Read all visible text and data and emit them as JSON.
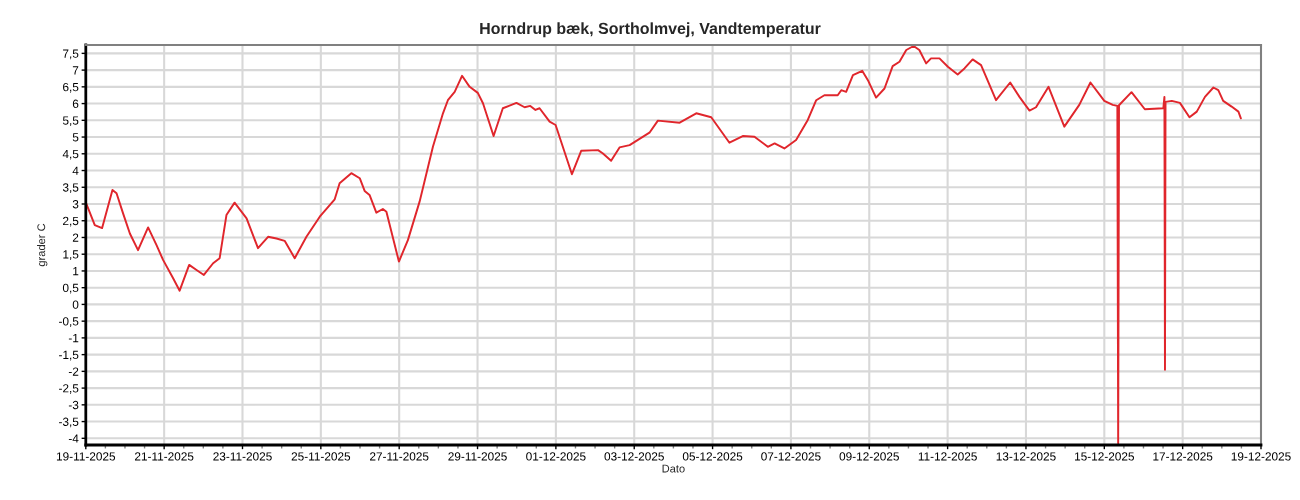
{
  "chart_data": {
    "type": "line",
    "title": "Horndrup bæk, Sortholmvej, Vandtemperatur",
    "xlabel": "Dato",
    "ylabel": "grader C",
    "color": "#e0262c",
    "grid": true,
    "x": [
      "2025-11-19T00:00",
      "2025-11-19T05:30",
      "2025-11-19T10:00",
      "2025-11-19T16:20",
      "2025-11-19T18:50",
      "2025-11-19T22:50",
      "2025-11-20T03:00",
      "2025-11-20T08:00",
      "2025-11-20T14:10",
      "2025-11-20T19:20",
      "2025-11-20T23:20",
      "2025-11-21T05:30",
      "2025-11-21T09:30",
      "2025-11-21T15:20",
      "2025-11-21T19:50",
      "2025-11-22T00:20",
      "2025-11-22T06:00",
      "2025-11-22T10:00",
      "2025-11-22T14:10",
      "2025-11-22T19:10",
      "2025-11-23T02:30",
      "2025-11-23T09:30",
      "2025-11-23T15:40",
      "2025-11-23T20:50",
      "2025-11-24T01:50",
      "2025-11-24T08:00",
      "2025-11-24T15:10",
      "2025-11-24T23:20",
      "2025-11-25T08:30",
      "2025-11-25T11:30",
      "2025-11-25T18:40",
      "2025-11-25T23:50",
      "2025-11-26T02:50",
      "2025-11-26T05:50",
      "2025-11-26T10:00",
      "2025-11-26T14:00",
      "2025-11-26T16:10",
      "2025-11-26T23:50",
      "2025-11-27T05:20",
      "2025-11-27T12:30",
      "2025-11-27T20:40",
      "2025-11-28T02:50",
      "2025-11-28T05:50",
      "2025-11-28T10:00",
      "2025-11-28T14:30",
      "2025-11-28T19:10",
      "2025-11-29T00:10",
      "2025-11-29T03:20",
      "2025-11-29T09:50",
      "2025-11-29T15:30",
      "2025-11-29T23:50",
      "2025-11-30T04:50",
      "2025-11-30T08:20",
      "2025-11-30T11:30",
      "2025-11-30T14:00",
      "2025-11-30T20:10",
      "2025-11-30T23:50",
      "2025-12-01T09:50",
      "2025-12-01T15:30",
      "2025-12-02T01:50",
      "2025-12-02T04:50",
      "2025-12-02T09:50",
      "2025-12-02T15:00",
      "2025-12-02T21:10",
      "2025-12-03T09:20",
      "2025-12-03T14:30",
      "2025-12-04T03:50",
      "2025-12-04T14:00",
      "2025-12-04T23:10",
      "2025-12-05T10:20",
      "2025-12-05T18:30",
      "2025-12-06T01:40",
      "2025-12-06T09:50",
      "2025-12-06T14:00",
      "2025-12-06T20:00",
      "2025-12-07T03:10",
      "2025-12-07T10:20",
      "2025-12-07T15:30",
      "2025-12-07T20:30",
      "2025-12-08T04:40",
      "2025-12-08T06:50",
      "2025-12-08T09:50",
      "2025-12-08T14:00",
      "2025-12-08T19:40",
      "2025-12-08T23:10",
      "2025-12-09T04:10",
      "2025-12-09T09:20",
      "2025-12-09T14:20",
      "2025-12-09T18:30",
      "2025-12-09T22:40",
      "2025-12-10T03:10",
      "2025-12-10T06:40",
      "2025-12-10T10:50",
      "2025-12-10T13:50",
      "2025-12-10T19:00",
      "2025-12-11T00:10",
      "2025-12-11T06:10",
      "2025-12-11T10:20",
      "2025-12-11T15:20",
      "2025-12-11T20:30",
      "2025-12-12T05:40",
      "2025-12-12T14:20",
      "2025-12-12T20:00",
      "2025-12-13T02:10",
      "2025-12-13T06:10",
      "2025-12-13T13:50",
      "2025-12-13T23:30",
      "2025-12-14T08:40",
      "2025-12-14T15:30",
      "2025-12-15T00:00",
      "2025-12-15T05:10",
      "2025-12-15T08:00",
      "2025-12-15T08:30",
      "2025-12-15T09:00",
      "2025-12-15T16:40",
      "2025-12-16T00:50",
      "2025-12-16T12:10",
      "2025-12-16T12:50",
      "2025-12-16T13:10",
      "2025-12-16T13:30",
      "2025-12-16T17:20",
      "2025-12-16T22:20",
      "2025-12-17T04:10",
      "2025-12-17T08:40",
      "2025-12-17T13:40",
      "2025-12-17T18:50",
      "2025-12-17T21:50",
      "2025-12-18T00:50",
      "2025-12-18T06:00",
      "2025-12-18T10:10",
      "2025-12-18T11:40"
    ],
    "values": [
      3.05,
      2.37,
      2.28,
      3.42,
      3.32,
      2.72,
      2.12,
      1.62,
      2.3,
      1.77,
      1.33,
      0.78,
      0.41,
      1.18,
      1.03,
      0.88,
      1.23,
      1.38,
      2.67,
      3.04,
      2.57,
      1.68,
      2.02,
      1.97,
      1.9,
      1.38,
      2.02,
      2.62,
      3.14,
      3.62,
      3.92,
      3.77,
      3.39,
      3.27,
      2.74,
      2.85,
      2.77,
      1.28,
      1.92,
      3.07,
      4.71,
      5.71,
      6.1,
      6.35,
      6.83,
      6.5,
      6.32,
      6.01,
      5.03,
      5.86,
      6.02,
      5.89,
      5.93,
      5.81,
      5.86,
      5.46,
      5.36,
      3.89,
      4.59,
      4.61,
      4.51,
      4.29,
      4.69,
      4.76,
      5.13,
      5.49,
      5.43,
      5.71,
      5.59,
      4.83,
      5.03,
      5.01,
      4.71,
      4.81,
      4.66,
      4.91,
      5.51,
      6.1,
      6.25,
      6.25,
      6.4,
      6.35,
      6.85,
      6.98,
      6.7,
      6.18,
      6.45,
      7.12,
      7.25,
      7.6,
      7.72,
      7.6,
      7.2,
      7.35,
      7.35,
      7.1,
      6.87,
      7.05,
      7.32,
      7.15,
      6.1,
      6.63,
      6.2,
      5.79,
      5.89,
      6.5,
      5.31,
      5.96,
      6.63,
      6.08,
      5.96,
      5.93,
      -4.15,
      5.95,
      6.34,
      5.83,
      5.86,
      6.2,
      -1.95,
      6.05,
      6.08,
      6.02,
      5.59,
      5.76,
      6.2,
      6.48,
      6.4,
      6.08,
      5.91,
      5.76,
      5.56
    ],
    "xlim": [
      "2025-11-19",
      "2025-12-19"
    ],
    "xticks": [
      {
        "value": "2025-11-19",
        "label": "19-11-2025"
      },
      {
        "value": "2025-11-19T12:00",
        "label": null
      },
      {
        "value": "2025-11-20",
        "label": null
      },
      {
        "value": "2025-11-20T12:00",
        "label": null
      },
      {
        "value": "2025-11-21",
        "label": "21-11-2025"
      },
      {
        "value": "2025-11-21T12:00",
        "label": null
      },
      {
        "value": "2025-11-22",
        "label": null
      },
      {
        "value": "2025-11-22T12:00",
        "label": null
      },
      {
        "value": "2025-11-23",
        "label": "23-11-2025"
      },
      {
        "value": "2025-11-23T12:00",
        "label": null
      },
      {
        "value": "2025-11-24",
        "label": null
      },
      {
        "value": "2025-11-24T12:00",
        "label": null
      },
      {
        "value": "2025-11-25",
        "label": "25-11-2025"
      },
      {
        "value": "2025-11-25T12:00",
        "label": null
      },
      {
        "value": "2025-11-26",
        "label": null
      },
      {
        "value": "2025-11-26T12:00",
        "label": null
      },
      {
        "value": "2025-11-27",
        "label": "27-11-2025"
      },
      {
        "value": "2025-11-27T12:00",
        "label": null
      },
      {
        "value": "2025-11-28",
        "label": null
      },
      {
        "value": "2025-11-28T12:00",
        "label": null
      },
      {
        "value": "2025-11-29",
        "label": "29-11-2025"
      },
      {
        "value": "2025-11-29T12:00",
        "label": null
      },
      {
        "value": "2025-11-30",
        "label": null
      },
      {
        "value": "2025-11-30T12:00",
        "label": null
      },
      {
        "value": "2025-12-01",
        "label": "01-12-2025"
      },
      {
        "value": "2025-12-01T12:00",
        "label": null
      },
      {
        "value": "2025-12-02",
        "label": null
      },
      {
        "value": "2025-12-02T12:00",
        "label": null
      },
      {
        "value": "2025-12-03",
        "label": "03-12-2025"
      },
      {
        "value": "2025-12-03T12:00",
        "label": null
      },
      {
        "value": "2025-12-04",
        "label": null
      },
      {
        "value": "2025-12-04T12:00",
        "label": null
      },
      {
        "value": "2025-12-05",
        "label": "05-12-2025"
      },
      {
        "value": "2025-12-05T12:00",
        "label": null
      },
      {
        "value": "2025-12-06",
        "label": null
      },
      {
        "value": "2025-12-06T12:00",
        "label": null
      },
      {
        "value": "2025-12-07",
        "label": "07-12-2025"
      },
      {
        "value": "2025-12-07T12:00",
        "label": null
      },
      {
        "value": "2025-12-08",
        "label": null
      },
      {
        "value": "2025-12-08T12:00",
        "label": null
      },
      {
        "value": "2025-12-09",
        "label": "09-12-2025"
      },
      {
        "value": "2025-12-09T12:00",
        "label": null
      },
      {
        "value": "2025-12-10",
        "label": null
      },
      {
        "value": "2025-12-10T12:00",
        "label": null
      },
      {
        "value": "2025-12-11",
        "label": "11-12-2025"
      },
      {
        "value": "2025-12-11T12:00",
        "label": null
      },
      {
        "value": "2025-12-12",
        "label": null
      },
      {
        "value": "2025-12-12T12:00",
        "label": null
      },
      {
        "value": "2025-12-13",
        "label": "13-12-2025"
      },
      {
        "value": "2025-12-13T12:00",
        "label": null
      },
      {
        "value": "2025-12-14",
        "label": null
      },
      {
        "value": "2025-12-14T12:00",
        "label": null
      },
      {
        "value": "2025-12-15",
        "label": "15-12-2025"
      },
      {
        "value": "2025-12-15T12:00",
        "label": null
      },
      {
        "value": "2025-12-16",
        "label": null
      },
      {
        "value": "2025-12-16T12:00",
        "label": null
      },
      {
        "value": "2025-12-17",
        "label": "17-12-2025"
      },
      {
        "value": "2025-12-17T12:00",
        "label": null
      },
      {
        "value": "2025-12-18",
        "label": null
      },
      {
        "value": "2025-12-18T12:00",
        "label": null
      },
      {
        "value": "2025-12-19",
        "label": "19-12-2025"
      }
    ],
    "ylim": [
      -4.2,
      7.75
    ],
    "yticks": [
      -4,
      {
        "value": -3.5,
        "label": "-3,5"
      },
      -3,
      {
        "value": -2.5,
        "label": "-2,5"
      },
      -2,
      {
        "value": -1.5,
        "label": "-1,5"
      },
      -1,
      {
        "value": -0.5,
        "label": "-0,5"
      },
      0,
      {
        "value": 0.5,
        "label": "0,5"
      },
      1,
      {
        "value": 1.5,
        "label": "1,5"
      },
      2,
      {
        "value": 2.5,
        "label": "2,5"
      },
      3,
      {
        "value": 3.5,
        "label": "3,5"
      },
      4,
      {
        "value": 4.5,
        "label": "4,5"
      },
      5,
      {
        "value": 5.5,
        "label": "5,5"
      },
      6,
      {
        "value": 6.5,
        "label": "6,5"
      },
      7,
      {
        "value": 7.5,
        "label": "7,5"
      }
    ]
  }
}
